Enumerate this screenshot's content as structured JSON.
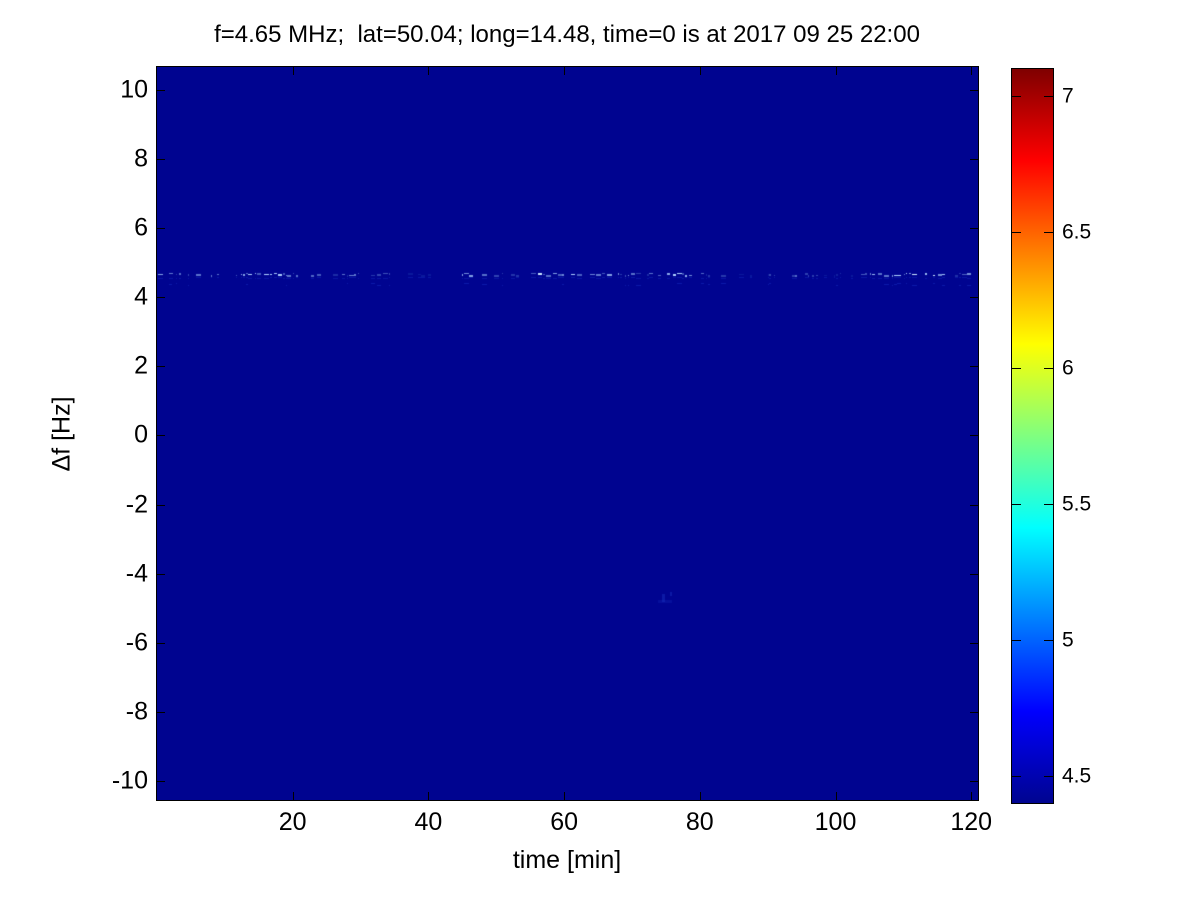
{
  "figure": {
    "title": "f=4.65 MHz;  lat=50.04; long=14.48, time=0 is at 2017 09 25 22:00"
  },
  "chart_data": {
    "type": "heatmap",
    "title": "f=4.65 MHz;  lat=50.04; long=14.48, time=0 is at 2017 09 25 22:00",
    "xlabel": "time [min]",
    "ylabel": "Δf [Hz]",
    "xlim": [
      0,
      121
    ],
    "ylim": [
      -10.55,
      10.66
    ],
    "xticks": [
      20,
      40,
      60,
      80,
      100,
      120
    ],
    "yticks": [
      10,
      8,
      6,
      4,
      2,
      0,
      -2,
      -4,
      -6,
      -8,
      -10
    ],
    "grid": false,
    "legend": false,
    "background_value": 4.4,
    "background_color": "#000490",
    "colormap": "jet",
    "colormap_stops": [
      {
        "pos": 0.0,
        "color": "#000490"
      },
      {
        "pos": 0.125,
        "color": "#0000ff"
      },
      {
        "pos": 0.375,
        "color": "#00ffff"
      },
      {
        "pos": 0.625,
        "color": "#ffff00"
      },
      {
        "pos": 0.875,
        "color": "#ff0000"
      },
      {
        "pos": 1.0,
        "color": "#7f0000"
      }
    ],
    "colorbar": {
      "position": "right",
      "range": [
        4.4,
        7.1
      ],
      "ticks": [
        7,
        6.5,
        6,
        5.5,
        5,
        4.5
      ]
    },
    "features": [
      {
        "name": "doppler-trace",
        "description": "horizontal speckled line of enhanced spectral power spanning the full time range",
        "delta_f_hz": 4.6,
        "time_min_range": [
          0,
          121
        ],
        "intensity_range": [
          4.6,
          6.3
        ],
        "seed": 42
      },
      {
        "name": "faint-spot",
        "description": "barely visible diffuse enhancement",
        "delta_f_hz": -4.7,
        "time_min": 75,
        "intensity": 4.55
      }
    ]
  }
}
